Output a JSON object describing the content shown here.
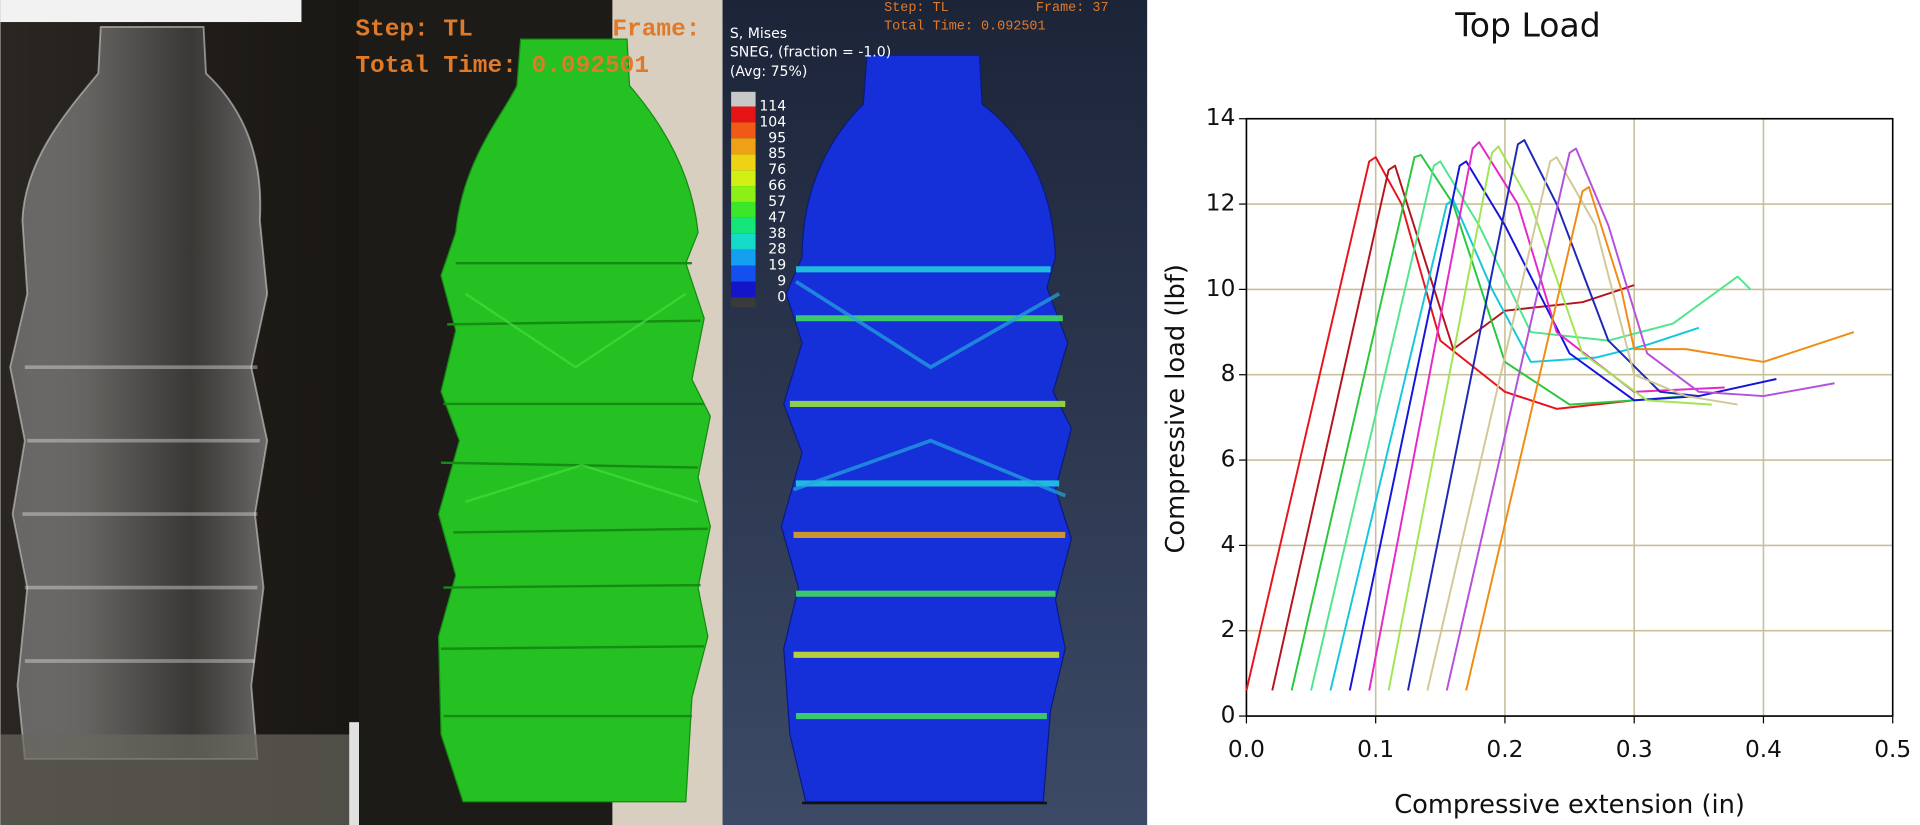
{
  "photo_overlay": {
    "step": "Step: TL",
    "frame": "Frame:",
    "total_time": "Total Time: 0.092501"
  },
  "simulation": {
    "step": "Step: TL",
    "frame": "Frame: 37",
    "total_time": "Total Time: 0.092501",
    "legend_title": [
      "S, Mises",
      "SNEG, (fraction = -1.0)",
      "(Avg: 75%)"
    ],
    "legend_values": [
      114,
      104,
      95,
      85,
      76,
      66,
      57,
      47,
      38,
      28,
      19,
      9,
      0
    ]
  },
  "chart_data": {
    "type": "line",
    "title": "Top Load",
    "x_label": "Compressive extension (in)",
    "y_label": "Compressive load (lbf)",
    "xlim": [
      0,
      0.5
    ],
    "ylim": [
      0,
      14
    ],
    "xticks": [
      {
        "value": 0,
        "label": "0.0"
      },
      0.1,
      0.2,
      0.3,
      0.4,
      0.5
    ],
    "yticks": [
      0,
      2,
      4,
      6,
      8,
      10,
      12,
      14
    ],
    "grid": true,
    "series": [
      {
        "color": "#e8141c",
        "x": [
          0.0,
          0.095,
          0.1,
          0.12,
          0.15,
          0.2,
          0.24,
          0.3
        ],
        "values": [
          0.6,
          13.0,
          13.1,
          12.0,
          8.8,
          7.6,
          7.2,
          7.4
        ]
      },
      {
        "color": "#b4141e",
        "x": [
          0.02,
          0.11,
          0.115,
          0.14,
          0.16,
          0.2,
          0.26,
          0.3
        ],
        "values": [
          0.6,
          12.8,
          12.9,
          10.5,
          8.6,
          9.5,
          9.7,
          10.1
        ]
      },
      {
        "color": "#28c83c",
        "x": [
          0.035,
          0.13,
          0.135,
          0.16,
          0.2,
          0.25,
          0.3,
          0.34
        ],
        "values": [
          0.6,
          13.1,
          13.15,
          12.0,
          8.3,
          7.3,
          7.4,
          7.5
        ]
      },
      {
        "color": "#50e68c",
        "x": [
          0.05,
          0.145,
          0.15,
          0.18,
          0.22,
          0.28,
          0.33,
          0.38,
          0.39
        ],
        "values": [
          0.6,
          12.9,
          13.0,
          11.5,
          9.0,
          8.8,
          9.2,
          10.3,
          10.0
        ]
      },
      {
        "color": "#14c8dc",
        "x": [
          0.065,
          0.155,
          0.16,
          0.19,
          0.22,
          0.27,
          0.31,
          0.35
        ],
        "values": [
          0.6,
          12.0,
          12.1,
          10.0,
          8.3,
          8.4,
          8.7,
          9.1
        ]
      },
      {
        "color": "#1414dc",
        "x": [
          0.08,
          0.165,
          0.17,
          0.2,
          0.25,
          0.3,
          0.35,
          0.41
        ],
        "values": [
          0.6,
          12.9,
          13.0,
          11.5,
          8.5,
          7.4,
          7.5,
          7.9
        ]
      },
      {
        "color": "#e628c8",
        "x": [
          0.095,
          0.175,
          0.18,
          0.21,
          0.24,
          0.3,
          0.37
        ],
        "values": [
          0.6,
          13.3,
          13.45,
          12.0,
          9.0,
          7.6,
          7.7
        ]
      },
      {
        "color": "#a0e650",
        "x": [
          0.11,
          0.19,
          0.195,
          0.22,
          0.26,
          0.31,
          0.36
        ],
        "values": [
          0.6,
          13.2,
          13.35,
          12.0,
          8.5,
          7.4,
          7.3
        ]
      },
      {
        "color": "#1e28b4",
        "x": [
          0.125,
          0.21,
          0.215,
          0.24,
          0.28,
          0.32,
          0.35
        ],
        "values": [
          0.6,
          13.4,
          13.5,
          12.0,
          8.8,
          7.6,
          7.5
        ]
      },
      {
        "color": "#d2c896",
        "x": [
          0.14,
          0.235,
          0.24,
          0.27,
          0.3,
          0.34,
          0.38
        ],
        "values": [
          0.6,
          13.0,
          13.1,
          11.5,
          8.0,
          7.5,
          7.3
        ]
      },
      {
        "color": "#b450dc",
        "x": [
          0.155,
          0.25,
          0.255,
          0.28,
          0.31,
          0.35,
          0.4,
          0.455
        ],
        "values": [
          0.6,
          13.2,
          13.3,
          11.5,
          8.5,
          7.6,
          7.5,
          7.8
        ]
      },
      {
        "color": "#f08c14",
        "x": [
          0.17,
          0.26,
          0.265,
          0.29,
          0.3,
          0.34,
          0.4,
          0.47
        ],
        "values": [
          0.6,
          12.3,
          12.4,
          10.0,
          8.6,
          8.6,
          8.3,
          9.0
        ]
      }
    ]
  }
}
